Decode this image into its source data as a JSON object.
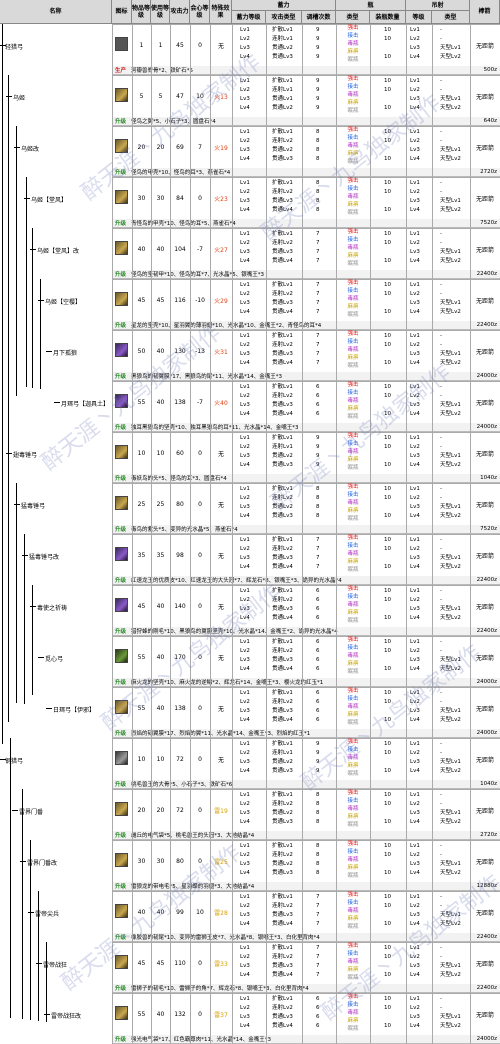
{
  "headers": {
    "name": "名称",
    "icon": "图标",
    "item_level": "物品等级",
    "use_level": "使用等级",
    "attack": "攻击力",
    "affinity": "会心等级",
    "special": "特殊效果",
    "charge": "蓄力",
    "charge_level": "蓄力等级",
    "attack_type": "攻击类型",
    "tune_count": "调槽次数",
    "coating": "瓶",
    "coating_type": "类型",
    "coating_count": "装瓶数量",
    "arc": "吊射",
    "arc_level": "等级",
    "arc_type": "类型",
    "arrow": "棒箭"
  },
  "weapons": [
    {
      "name": "轻猎弓",
      "lvl": "1",
      "use": "1",
      "atk": "45",
      "aff": "0",
      "eff": "无",
      "icon": "first",
      "charge": [
        "Lv1",
        "Lv2",
        "Lv3",
        "Lv4"
      ],
      "atype": [
        "扩散Lv1",
        "连射Lv1",
        "贯通Lv2",
        "贯通Lv3"
      ],
      "tune": [
        "9",
        "9",
        "9",
        "9"
      ],
      "coat_n": [
        "10",
        "10",
        "",
        "10"
      ],
      "arc_lv": [
        "Lv1",
        "Lv2",
        "Lv3",
        "Lv4"
      ],
      "arc_t": [
        "-",
        "-",
        "天型Lv1",
        "天型Lv2"
      ],
      "arrow": "无距箭",
      "mat": {
        "tag": "生产",
        "red": true,
        "txt": "河瓣兽脊骨*2、铁矿石*5",
        "price": "500z"
      }
    },
    {
      "name": "乌姬",
      "lvl": "5",
      "use": "5",
      "atk": "47",
      "aff": "10",
      "eff": "火13",
      "icon": "",
      "charge": [
        "Lv1",
        "Lv2",
        "Lv3",
        "Lv4"
      ],
      "atype": [
        "扩散Lv1",
        "连射Lv1",
        "贯通Lv1",
        "贯通Lv2"
      ],
      "tune": [
        "9",
        "9",
        "9",
        "9"
      ],
      "coat_n": [
        "10",
        "10",
        "",
        "10"
      ],
      "arc_lv": [
        "Lv1",
        "Lv2",
        "Lv3",
        "Lv4"
      ],
      "arc_t": [
        "-",
        "-",
        "天型Lv1",
        "天型Lv2"
      ],
      "arrow": "无距箭",
      "mat": {
        "tag": "升级",
        "red": false,
        "txt": "怪鸟之翼*5、小石子*3、圆盘石*4",
        "price": "640z"
      }
    },
    {
      "name": "乌姬改",
      "lvl": "20",
      "use": "20",
      "atk": "69",
      "aff": "7",
      "eff": "火19",
      "icon": "",
      "charge": [
        "Lv1",
        "Lv2",
        "Lv3",
        "Lv4"
      ],
      "atype": [
        "扩散Lv1",
        "连射Lv2",
        "贯通Lv2",
        "贯通Lv3"
      ],
      "tune": [
        "8",
        "8",
        "8",
        "8"
      ],
      "coat_n": [
        "10",
        "10",
        "",
        "10"
      ],
      "arc_lv": [
        "Lv1",
        "Lv2",
        "Lv3",
        "Lv4"
      ],
      "arc_t": [
        "-",
        "-",
        "天型Lv1",
        "天型Lv2"
      ],
      "arrow": "无距箭",
      "mat": {
        "tag": "升级",
        "red": false,
        "txt": "怪鸟的甲壳*10、怪鸟的耳*3、燕雀石*4",
        "price": "2720z"
      }
    },
    {
      "name": "乌姬【堂风】",
      "lvl": "30",
      "use": "30",
      "atk": "84",
      "aff": "0",
      "eff": "火23",
      "icon": "",
      "charge": [
        "Lv1",
        "Lv2",
        "Lv3",
        "Lv4"
      ],
      "atype": [
        "扩散Lv1",
        "连射Lv2",
        "贯通Lv3",
        "贯通Lv4"
      ],
      "tune": [
        "8",
        "8",
        "8",
        "8"
      ],
      "coat_n": [
        "10",
        "10",
        "",
        "10"
      ],
      "arc_lv": [
        "Lv1",
        "Lv2",
        "Lv3",
        "Lv4"
      ],
      "arc_t": [
        "-",
        "-",
        "天型Lv1",
        "天型Lv2"
      ],
      "arrow": "无距箭",
      "mat": {
        "tag": "升级",
        "red": false,
        "txt": "青怪鸟的甲壳*10、怪鸟的耳*5、燕雀石*4",
        "price": "7520z"
      }
    },
    {
      "name": "乌姬【堂风】改",
      "lvl": "40",
      "use": "40",
      "atk": "104",
      "aff": "-7",
      "eff": "火27",
      "icon": "",
      "charge": [
        "Lv1",
        "Lv2",
        "Lv3",
        "Lv4"
      ],
      "atype": [
        "扩散Lv1",
        "连射Lv2",
        "贯通Lv3",
        "贯通Lv4"
      ],
      "tune": [
        "7",
        "7",
        "7",
        "7"
      ],
      "coat_n": [
        "10",
        "10",
        "",
        "10"
      ],
      "arc_lv": [
        "Lv1",
        "Lv2",
        "Lv3",
        "Lv4"
      ],
      "arc_t": [
        "-",
        "-",
        "天型Lv1",
        "天型Lv2"
      ],
      "arrow": "无距箭",
      "mat": {
        "tag": "升级",
        "red": false,
        "txt": "怪鸟的坚韧甲*10、怪鸟的耳*7、光水晶*5、银嘴王*3",
        "price": "22400z"
      }
    },
    {
      "name": "乌姬【空樱】",
      "lvl": "45",
      "use": "45",
      "atk": "116",
      "aff": "-10",
      "eff": "火29",
      "icon": "",
      "charge": [
        "Lv1",
        "Lv2",
        "Lv3",
        "Lv4"
      ],
      "atype": [
        "扩散Lv1",
        "连射Lv2",
        "贯通Lv3",
        "贯通Lv4"
      ],
      "tune": [
        "7",
        "7",
        "7",
        "7"
      ],
      "coat_n": [
        "10",
        "10",
        "",
        "10"
      ],
      "arc_lv": [
        "Lv1",
        "Lv2",
        "Lv3",
        "Lv4"
      ],
      "arc_t": [
        "-",
        "-",
        "天型Lv1",
        "天型Lv2"
      ],
      "arrow": "无距箭",
      "mat": {
        "tag": "升级",
        "red": false,
        "txt": "星龙的坚壳*10、星羽翼的薄羽翅*10、光水晶*10、金嘴王*2、青怪鸟的耳*4",
        "price": "22400z"
      }
    },
    {
      "name": "月下孤狼",
      "lvl": "50",
      "use": "40",
      "atk": "130",
      "aff": "-13",
      "eff": "火31",
      "icon": "purple",
      "charge": [
        "Lv1",
        "Lv2",
        "Lv3",
        "Lv4"
      ],
      "atype": [
        "扩散Lv1",
        "连射Lv2",
        "贯通Lv3",
        "贯通Lv4"
      ],
      "tune": [
        "7",
        "7",
        "7",
        "7"
      ],
      "coat_n": [
        "10",
        "10",
        "",
        "10"
      ],
      "arc_lv": [
        "Lv1",
        "Lv2",
        "Lv3",
        "Lv4"
      ],
      "arc_t": [
        "-",
        "-",
        "天型Lv1",
        "天型Lv2"
      ],
      "arrow": "无距箭",
      "mat": {
        "tag": "升级",
        "red": false,
        "txt": "黑狼鸟的韧翼膜*17、黑狼鸟的尾*11、光水晶*14、金嘴王*3",
        "price": "24000z"
      }
    },
    {
      "name": "月珥弓【迦具土】",
      "lvl": "55",
      "use": "40",
      "atk": "138",
      "aff": "-7",
      "eff": "火40",
      "icon": "purple",
      "charge": [
        "Lv1",
        "Lv2",
        "Lv3",
        "Lv4"
      ],
      "atype": [
        "扩散Lv1",
        "连射Lv2",
        "贯通Lv3",
        "贯通Lv4"
      ],
      "tune": [
        "6",
        "6",
        "6",
        "6"
      ],
      "coat_n": [
        "10",
        "10",
        "",
        "10"
      ],
      "arc_lv": [
        "Lv1",
        "Lv2",
        "Lv3",
        "Lv4"
      ],
      "arc_t": [
        "-",
        "-",
        "天型Lv1",
        "天型Lv2"
      ],
      "arrow": "无距箭",
      "mat": {
        "tag": "升级",
        "red": false,
        "txt": "独耳黑狼鸟的坚壳*10、独耳黑狼鸟的耳*11、光水晶*14、金嘴王*3",
        "price": "24000z"
      }
    },
    {
      "name": "翅毒锤弓",
      "lvl": "10",
      "use": "10",
      "atk": "60",
      "aff": "0",
      "eff": "无",
      "icon": "",
      "charge": [
        "Lv1",
        "Lv2",
        "Lv3",
        "Lv4"
      ],
      "atype": [
        "扩散Lv1",
        "连射Lv1",
        "贯通Lv2",
        "贯通Lv3"
      ],
      "tune": [
        "9",
        "9",
        "9",
        "9"
      ],
      "coat_n": [
        "10",
        "10",
        "",
        "10"
      ],
      "arc_lv": [
        "Lv1",
        "Lv2",
        "Lv3",
        "Lv4"
      ],
      "arc_t": [
        "-",
        "-",
        "天型Lv1",
        "天型Lv2"
      ],
      "arrow": "无距箭",
      "mat": {
        "tag": "升级",
        "red": false,
        "txt": "毒妖鸟的头*5、怪鸟的耳*3、圆盘石*4",
        "price": "1040z"
      }
    },
    {
      "name": "猛毒锤弓",
      "lvl": "25",
      "use": "25",
      "atk": "80",
      "aff": "0",
      "eff": "无",
      "icon": "",
      "charge": [
        "Lv1",
        "Lv2",
        "Lv3",
        "Lv4"
      ],
      "atype": [
        "扩散Lv1",
        "连射Lv2",
        "贯通Lv2",
        "贯通Lv3"
      ],
      "tune": [
        "8",
        "8",
        "8",
        "8"
      ],
      "coat_n": [
        "10",
        "10",
        "",
        "10"
      ],
      "arc_lv": [
        "Lv1",
        "Lv2",
        "Lv3",
        "Lv4"
      ],
      "arc_t": [
        "-",
        "-",
        "天型Lv1",
        "天型Lv2"
      ],
      "arrow": "无距箭",
      "mat": {
        "tag": "升级",
        "red": false,
        "txt": "毒鸟的紫头*5、变异的光水晶*5、燕雀石*4",
        "price": "7520z"
      }
    },
    {
      "name": "猛毒锤弓改",
      "lvl": "35",
      "use": "35",
      "atk": "98",
      "aff": "0",
      "eff": "无",
      "icon": "purple",
      "charge": [
        "Lv1",
        "Lv2",
        "Lv3",
        "Lv4"
      ],
      "atype": [
        "扩散Lv1",
        "连射Lv2",
        "贯通Lv3",
        "贯通Lv4"
      ],
      "tune": [
        "7",
        "7",
        "7",
        "7"
      ],
      "coat_n": [
        "10",
        "10",
        "",
        "10"
      ],
      "arc_lv": [
        "Lv1",
        "Lv2",
        "Lv3",
        "Lv4"
      ],
      "arc_t": [
        "-",
        "-",
        "天型Lv1",
        "天型Lv2"
      ],
      "arrow": "无距箭",
      "mat": {
        "tag": "升级",
        "red": false,
        "txt": "红速龙王的优质皮*10、红速龙王的大头冠*7、辉龙石*8、银嘴王*3、诡异的光水晶*4",
        "price": "22400z"
      }
    },
    {
      "name": "毒使之祈祷",
      "lvl": "45",
      "use": "40",
      "atk": "140",
      "aff": "0",
      "eff": "无",
      "icon": "purple",
      "charge": [
        "Lv1",
        "Lv2",
        "Lv3",
        "Lv4"
      ],
      "atype": [
        "扩散Lv1",
        "连射Lv2",
        "贯通Lv3",
        "贯通Lv4"
      ],
      "tune": [
        "6",
        "6",
        "6",
        "6"
      ],
      "coat_n": [
        "10",
        "10",
        "",
        "10"
      ],
      "arc_lv": [
        "Lv1",
        "Lv2",
        "Lv3",
        "Lv4"
      ],
      "arc_t": [
        "-",
        "-",
        "天型Lv1",
        "天型Lv2"
      ],
      "arrow": "无距箭",
      "mat": {
        "tag": "升级",
        "red": false,
        "txt": "猎狩蜂的刚毛*10、黑狼鸟的翼膜坚壳*10、光水晶*14、金嘴王*2、诡异的光水晶*4",
        "price": "22400z"
      }
    },
    {
      "name": "觅心弓",
      "lvl": "55",
      "use": "40",
      "atk": "170",
      "aff": "0",
      "eff": "无",
      "icon": "green",
      "charge": [
        "Lv1",
        "Lv2",
        "Lv3",
        "Lv4"
      ],
      "atype": [
        "扩散Lv1",
        "连射Lv2",
        "贯通Lv3",
        "贯通Lv4"
      ],
      "tune": [
        "6",
        "6",
        "6",
        "6"
      ],
      "coat_n": [
        "10",
        "10",
        "",
        "10"
      ],
      "arc_lv": [
        "Lv1",
        "Lv2",
        "Lv3",
        "Lv4"
      ],
      "arc_t": [
        "-",
        "-",
        "天型Lv1",
        "天型Lv2"
      ],
      "arrow": "无距箭",
      "mat": {
        "tag": "升级",
        "red": false,
        "txt": "麻火龙的坚壳*10、麻火龙的逆鳞*2、辉龙石*14、金嘴王*3、樱火龙的红玉*1",
        "price": "24000z"
      }
    },
    {
      "name": "日珥弓【伊邪】",
      "lvl": "55",
      "use": "40",
      "atk": "138",
      "aff": "0",
      "eff": "无",
      "icon": "",
      "charge": [
        "Lv1",
        "Lv2",
        "Lv3",
        "Lv4"
      ],
      "atype": [
        "扩散Lv1",
        "连射Lv2",
        "贯通Lv3",
        "贯通Lv4"
      ],
      "tune": [
        "6",
        "6",
        "6",
        "6"
      ],
      "coat_n": [
        "10",
        "10",
        "",
        "10"
      ],
      "arc_lv": [
        "Lv1",
        "Lv2",
        "Lv3",
        "Lv4"
      ],
      "arc_t": [
        "-",
        "-",
        "天型Lv1",
        "天型Lv2"
      ],
      "arrow": "无距箭",
      "mat": {
        "tag": "升级",
        "red": false,
        "txt": "烈焰的韧翼膜*17、烈焰的翼*11、光水晶*14、金嘴王*3、烈焰的红玉*1",
        "price": "24000z"
      }
    },
    {
      "name": "钢猎弓",
      "lvl": "10",
      "use": "10",
      "atk": "72",
      "aff": "0",
      "eff": "无",
      "icon": "gray",
      "charge": [
        "Lv1",
        "Lv2",
        "Lv3",
        "Lv4"
      ],
      "atype": [
        "扩散Lv1",
        "连射Lv1",
        "贯通Lv2",
        "贯通Lv3"
      ],
      "tune": [
        "9",
        "9",
        "9",
        "9"
      ],
      "coat_n": [
        "10",
        "10",
        "",
        "10"
      ],
      "arc_lv": [
        "Lv1",
        "Lv2",
        "Lv3",
        "Lv4"
      ],
      "arc_t": [
        "-",
        "-",
        "天型Lv1",
        "天型Lv2"
      ],
      "arrow": "无距箭",
      "mat": {
        "tag": "升级",
        "red": false,
        "txt": "桃毛兽王的大骨*5、小石子*3、铁矿石*6",
        "price": "1040z"
      }
    },
    {
      "name": "雷界门番",
      "lvl": "20",
      "use": "20",
      "atk": "72",
      "aff": "0",
      "eff": "雷19",
      "icon": "",
      "charge": [
        "Lv1",
        "Lv2",
        "Lv3",
        "Lv4"
      ],
      "atype": [
        "扩散Lv1",
        "连射Lv2",
        "贯通Lv2",
        "贯通Lv3"
      ],
      "tune": [
        "8",
        "8",
        "8",
        "8"
      ],
      "coat_n": [
        "10",
        "10",
        "",
        "10"
      ],
      "arc_lv": [
        "Lv1",
        "Lv2",
        "Lv3",
        "Lv4"
      ],
      "arc_t": [
        "-",
        "-",
        "天型Lv1",
        "天型Lv2"
      ],
      "arrow": "无距箭",
      "mat": {
        "tag": "升级",
        "red": false,
        "txt": "雌丘的电气袋*5、桃毛兽王的头冠*3、大地结晶*4",
        "price": "2720z"
      }
    },
    {
      "name": "雷界门番改",
      "lvl": "30",
      "use": "30",
      "atk": "80",
      "aff": "0",
      "eff": "雷25",
      "icon": "",
      "charge": [
        "Lv1",
        "Lv2",
        "Lv3",
        "Lv4"
      ],
      "atype": [
        "扩散Lv1",
        "连射Lv2",
        "贯通Lv2",
        "贯通Lv3"
      ],
      "tune": [
        "8",
        "8",
        "8",
        "8"
      ],
      "coat_n": [
        "10",
        "10",
        "",
        "10"
      ],
      "arc_lv": [
        "Lv1",
        "Lv2",
        "Lv3",
        "Lv4"
      ],
      "arc_t": [
        "-",
        "-",
        "天型Lv1",
        "天型Lv2"
      ],
      "arrow": "无距箭",
      "mat": {
        "tag": "升级",
        "red": false,
        "txt": "雷狼龙的带电毛*5、星羽蝶的羽翅*3、大地结晶*4",
        "price": "12880z"
      }
    },
    {
      "name": "雷帝尖兵",
      "lvl": "40",
      "use": "40",
      "atk": "99",
      "aff": "10",
      "eff": "雷28",
      "icon": "",
      "charge": [
        "Lv1",
        "Lv2",
        "Lv3",
        "Lv4"
      ],
      "atype": [
        "扩散Lv1",
        "连射Lv2",
        "贯通Lv3",
        "贯通Lv4"
      ],
      "tune": [
        "7",
        "7",
        "7",
        "7"
      ],
      "coat_n": [
        "10",
        "10",
        "",
        "10"
      ],
      "arc_lv": [
        "Lv1",
        "Lv2",
        "Lv3",
        "Lv4"
      ],
      "arc_t": [
        "-",
        "-",
        "天型Lv1",
        "天型Lv2"
      ],
      "arrow": "无距箭",
      "mat": {
        "tag": "升级",
        "red": false,
        "txt": "橡胶兽的韧尾*10、变异的雷狮王皮*7、光水晶*8、银嘴王*3、白化里背肉*4",
        "price": "22400z"
      }
    },
    {
      "name": "雷帝战狂",
      "lvl": "45",
      "use": "45",
      "atk": "110",
      "aff": "0",
      "eff": "雷33",
      "icon": "",
      "charge": [
        "Lv1",
        "Lv2",
        "Lv3",
        "Lv4"
      ],
      "atype": [
        "扩散Lv1",
        "连射Lv2",
        "贯通Lv3",
        "贯通Lv4"
      ],
      "tune": [
        "7",
        "7",
        "7",
        "7"
      ],
      "coat_n": [
        "10",
        "10",
        "",
        "10"
      ],
      "arc_lv": [
        "Lv1",
        "Lv2",
        "Lv3",
        "Lv4"
      ],
      "arc_t": [
        "-",
        "-",
        "天型Lv1",
        "天型Lv2"
      ],
      "arrow": "无距箭",
      "mat": {
        "tag": "升级",
        "red": false,
        "txt": "雷狮子的韧毛*10、雷狮子的角*7、辉龙石*8、银嘴王*3、白化里背肉*4",
        "price": "22400z"
      }
    },
    {
      "name": "雷帝战狂改",
      "lvl": "55",
      "use": "40",
      "atk": "132",
      "aff": "0",
      "eff": "雷37",
      "icon": "",
      "charge": [
        "Lv1",
        "Lv2",
        "Lv3",
        "Lv4"
      ],
      "atype": [
        "扩散Lv1",
        "连射Lv2",
        "贯通Lv3",
        "贯通Lv4"
      ],
      "tune": [
        "6",
        "6",
        "6",
        "6"
      ],
      "coat_n": [
        "10",
        "10",
        "",
        "10"
      ],
      "arc_lv": [
        "Lv1",
        "Lv2",
        "Lv3",
        "Lv4"
      ],
      "arc_t": [
        "-",
        "-",
        "天型Lv1",
        "天型Lv2"
      ],
      "arrow": "无距箭",
      "mat": {
        "tag": "升级",
        "red": false,
        "txt": "强光电气袋*17、红色霸尊肉*11、光水晶*14、金嘴王*3",
        "price": "24000z"
      }
    }
  ],
  "coatings": [
    {
      "label": "强击",
      "color": "red"
    },
    {
      "label": "接击",
      "color": "blue"
    },
    {
      "label": "毒瓶",
      "color": "purple"
    },
    {
      "label": "麻痹",
      "color": "yellow"
    },
    {
      "label": "眠瓶",
      "color": "gray"
    }
  ],
  "watermark": "醉天涯丶九鸟独家制作"
}
